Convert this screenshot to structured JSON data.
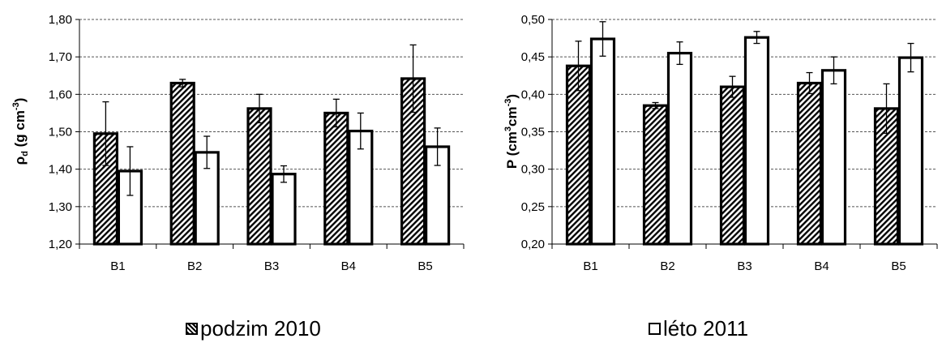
{
  "chart_data": [
    {
      "type": "bar",
      "ylabel_main": "ρ",
      "ylabel_sub": "d",
      "ylabel_rest": " (g cm",
      "ylabel_sup": "-3",
      "ylabel_close": ")",
      "categories": [
        "B1",
        "B2",
        "B3",
        "B4",
        "B5"
      ],
      "ylim": [
        1.2,
        1.8
      ],
      "yticks": [
        "1,20",
        "1,30",
        "1,40",
        "1,50",
        "1,60",
        "1,70",
        "1,80"
      ],
      "grid": true,
      "series": [
        {
          "name": "podzim 2010",
          "values": [
            1.495,
            1.63,
            1.562,
            1.55,
            1.642
          ],
          "errors": [
            0.085,
            0.01,
            0.038,
            0.037,
            0.09
          ]
        },
        {
          "name": "léto 2011",
          "values": [
            1.395,
            1.445,
            1.387,
            1.502,
            1.46
          ],
          "errors": [
            0.065,
            0.043,
            0.022,
            0.048,
            0.05
          ]
        }
      ]
    },
    {
      "type": "bar",
      "ylabel_main": "P",
      "ylabel_sub": "",
      "ylabel_rest": " (cm",
      "ylabel_sup": "3",
      "ylabel_mid": "cm",
      "ylabel_sup2": "-3",
      "ylabel_close": ")",
      "categories": [
        "B1",
        "B2",
        "B3",
        "B4",
        "B5"
      ],
      "ylim": [
        0.2,
        0.5
      ],
      "yticks": [
        "0,20",
        "0,25",
        "0,30",
        "0,35",
        "0,40",
        "0,45",
        "0,50"
      ],
      "grid": true,
      "series": [
        {
          "name": "podzim 2010",
          "values": [
            0.438,
            0.385,
            0.41,
            0.415,
            0.381
          ],
          "errors": [
            0.033,
            0.004,
            0.014,
            0.014,
            0.033
          ]
        },
        {
          "name": "léto 2011",
          "values": [
            0.474,
            0.455,
            0.476,
            0.432,
            0.449
          ],
          "errors": [
            0.023,
            0.015,
            0.008,
            0.018,
            0.019
          ]
        }
      ]
    }
  ],
  "legend": {
    "items": [
      {
        "label": "podzim 2010",
        "pattern": "hatched"
      },
      {
        "label": "léto 2011",
        "pattern": "plain"
      }
    ]
  },
  "colors": {
    "outline": "#000000",
    "fill_plain": "#ffffff",
    "grid": "#555555"
  }
}
